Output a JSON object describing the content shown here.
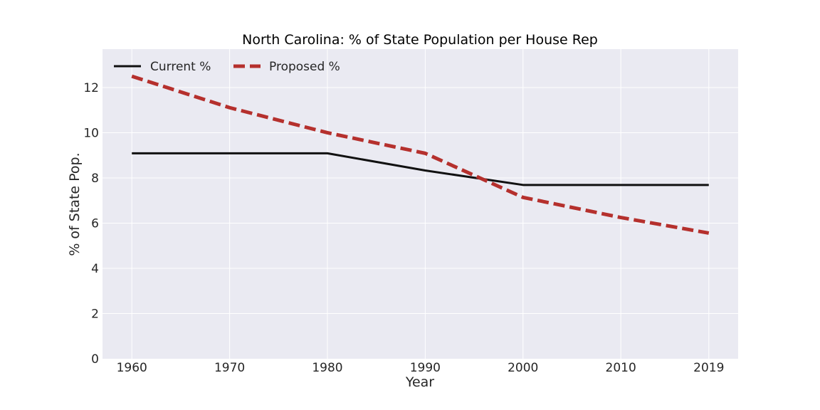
{
  "chart_data": {
    "type": "line",
    "title": "North Carolina: % of State Population per House Rep",
    "xlabel": "Year",
    "ylabel": "% of State Pop.",
    "x": [
      1960,
      1970,
      1980,
      1990,
      2000,
      2010,
      2019
    ],
    "x_tick_labels": [
      "1960",
      "1970",
      "1980",
      "1990",
      "2000",
      "2010",
      "2019"
    ],
    "y_ticks": [
      0,
      2,
      4,
      6,
      8,
      10,
      12
    ],
    "y_tick_labels": [
      "0",
      "2",
      "4",
      "6",
      "8",
      "10",
      "12"
    ],
    "xlim": [
      1957,
      2022
    ],
    "ylim": [
      0,
      13.7
    ],
    "grid": true,
    "legend_position": "top-left",
    "background": "#eaeaf2",
    "series": [
      {
        "name": "Current %",
        "color": "#111111",
        "style": "solid",
        "values": [
          9.09,
          9.09,
          9.09,
          8.33,
          7.69,
          7.69,
          7.69
        ]
      },
      {
        "name": "Proposed %",
        "color": "#b5302d",
        "style": "dashed",
        "values": [
          12.5,
          11.11,
          10.0,
          9.09,
          7.14,
          6.25,
          5.56
        ]
      }
    ]
  }
}
